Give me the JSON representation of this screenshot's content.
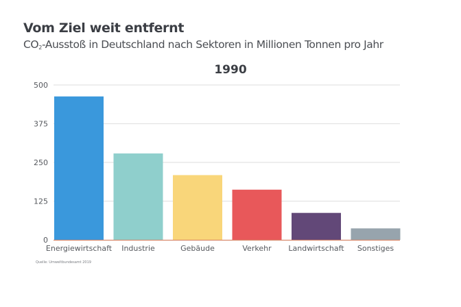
{
  "header": {
    "title": "Vom Ziel weit entfernt",
    "subtitle_prefix": "CO",
    "subtitle_sub": "2",
    "subtitle_rest": "-Ausstoß in Deutschland nach Sektoren in Millionen Tonnen pro Jahr"
  },
  "source": "Quelle: Umweltbundesamt 2019",
  "chart_data": {
    "type": "bar",
    "title": "1990",
    "xlabel": "",
    "ylabel": "",
    "ylim": [
      0,
      500
    ],
    "yticks": [
      0,
      125,
      250,
      375,
      500
    ],
    "ytick_labels": [
      "0",
      "125",
      "250",
      "375",
      "500"
    ],
    "grid": true,
    "categories": [
      "Energiewirtschaft",
      "Industrie",
      "Gebäude",
      "Verkehr",
      "Landwirtschaft",
      "Sonstiges"
    ],
    "values": [
      463,
      279,
      209,
      162,
      87,
      37
    ],
    "colors": [
      "#3a98dc",
      "#8fcfcc",
      "#f9d67a",
      "#e8585a",
      "#624878",
      "#97a4ad"
    ],
    "baseline_color": "#d98a6e",
    "grid_color": "#e3e3e3"
  }
}
